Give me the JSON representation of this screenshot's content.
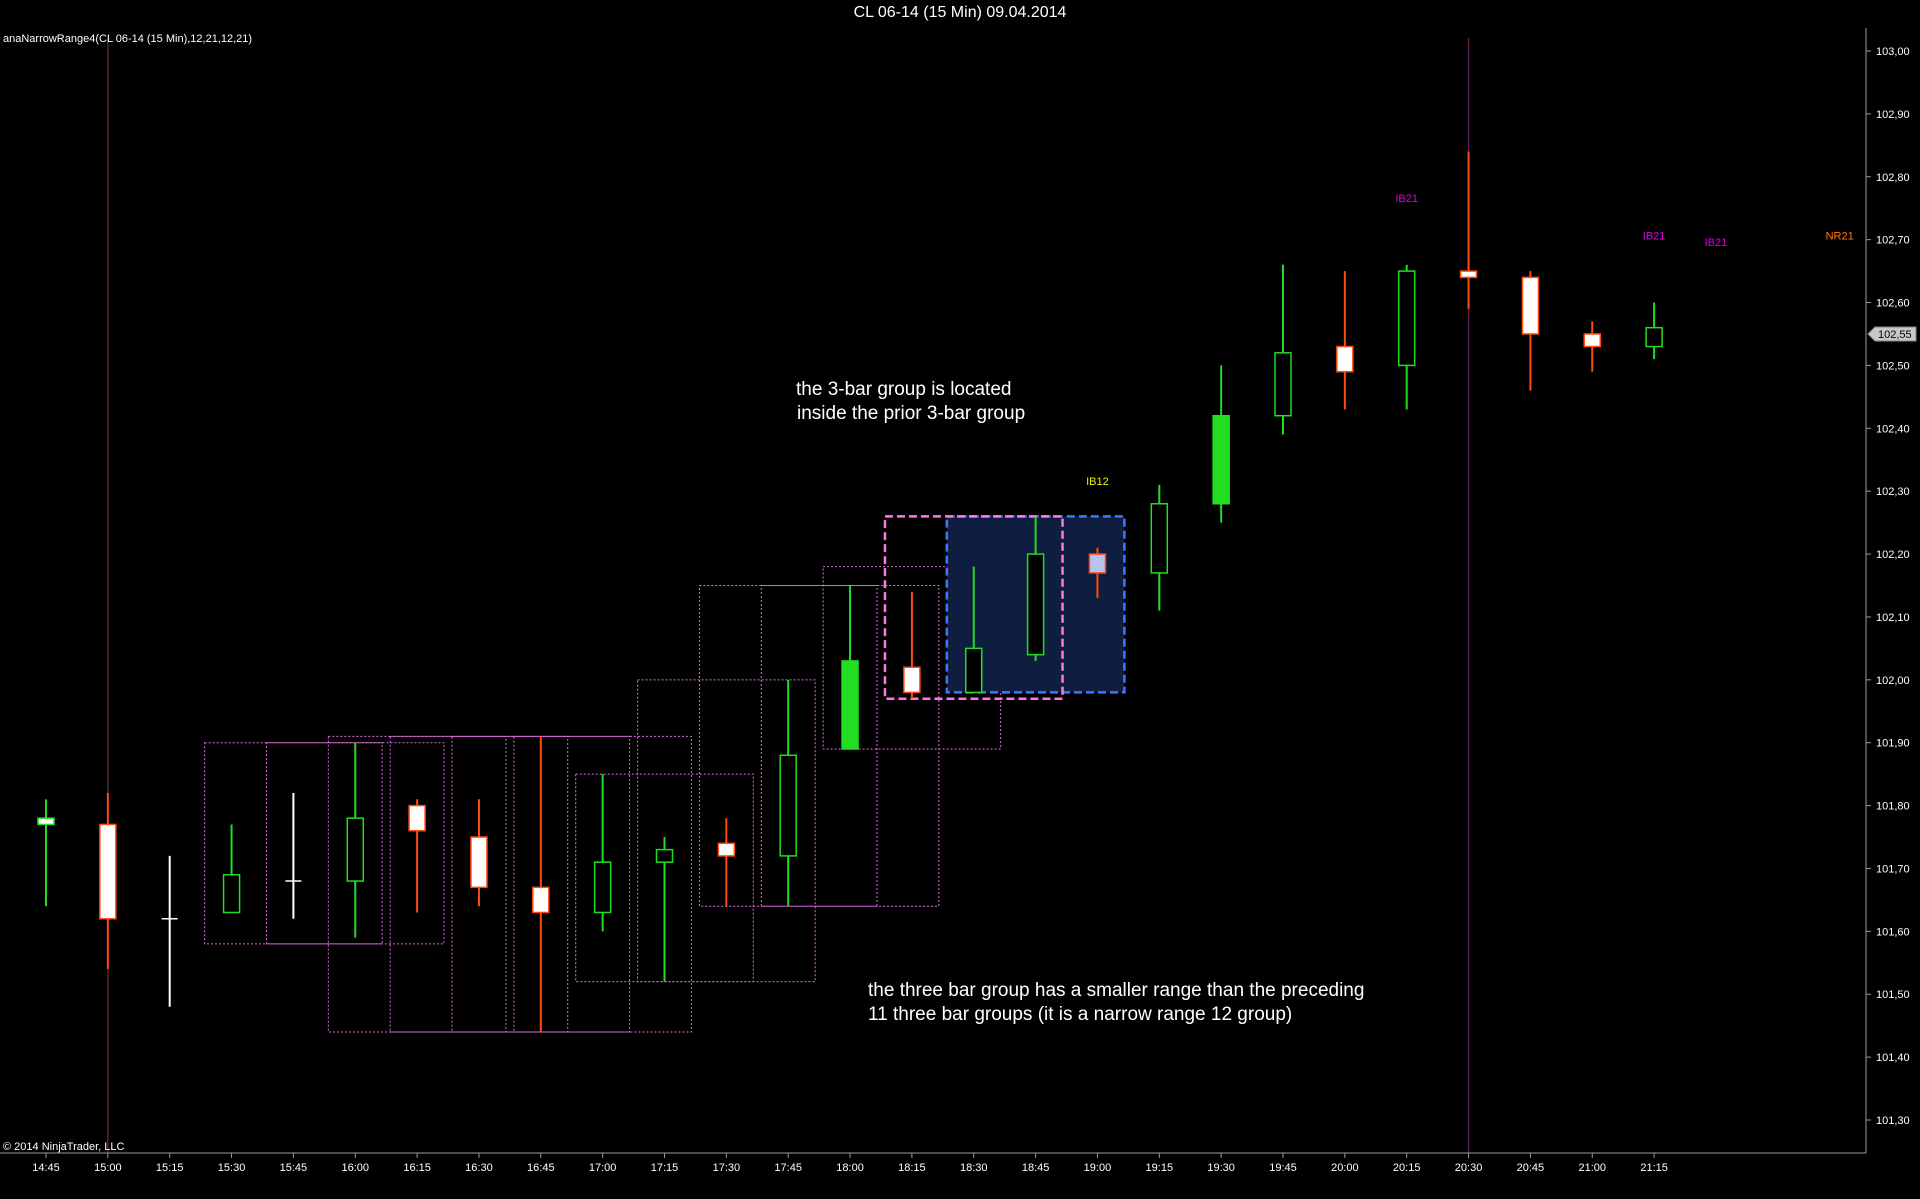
{
  "window": {
    "title": "CL 06-14 (15 Min)  09.04.2014"
  },
  "indicator_label": "anaNarrowRange4(CL 06-14 (15 Min),12,21,12,21)",
  "copyright": "© 2014 NinjaTrader, LLC",
  "colors": {
    "up": "#22dd22",
    "down": "#ff4a10",
    "doji": "#ffffff",
    "group_box": "#e070e0",
    "highlight_prior": "#ff7adf",
    "highlight_current": "#3a78ff",
    "highlight_fill": "#0f1d40",
    "ib21": "#e000e0",
    "ib12": "#f0f000",
    "nr21": "#ff7a10",
    "session_line": "#5a1f4a",
    "axis": "#9a9a9a"
  },
  "chart_data": {
    "type": "candlestick",
    "y_axis": {
      "min": 101.25,
      "max": 103.0,
      "tick_labels": [
        "103,00",
        "102,90",
        "102,80",
        "102,70",
        "102,60",
        "102,50",
        "102,40",
        "102,30",
        "102,20",
        "102,10",
        "102,00",
        "101,90",
        "101,80",
        "101,70",
        "101,60",
        "101,50",
        "101,40",
        "101,30"
      ],
      "ticks": [
        103.0,
        102.9,
        102.8,
        102.7,
        102.6,
        102.5,
        102.4,
        102.3,
        102.2,
        102.1,
        102.0,
        101.9,
        101.8,
        101.7,
        101.6,
        101.5,
        101.4,
        101.3
      ]
    },
    "x_axis": {
      "tick_labels": [
        "14:45",
        "15:00",
        "15:15",
        "15:30",
        "15:45",
        "16:00",
        "16:15",
        "16:30",
        "16:45",
        "17:00",
        "17:15",
        "17:30",
        "17:45",
        "18:00",
        "18:15",
        "18:30",
        "18:45",
        "19:00",
        "19:15",
        "19:30",
        "19:45",
        "20:00",
        "20:15",
        "20:30",
        "20:45",
        "21:00",
        "21:15"
      ]
    },
    "last_price_label": "102,55",
    "last_price": 102.55,
    "candles": [
      {
        "t": "14:45",
        "o": 101.77,
        "h": 101.81,
        "l": 101.64,
        "c": 101.78
      },
      {
        "t": "15:00",
        "o": 101.77,
        "h": 101.82,
        "l": 101.54,
        "c": 101.62
      },
      {
        "t": "15:15",
        "o": 101.62,
        "h": 101.72,
        "l": 101.48,
        "c": 101.62
      },
      {
        "t": "15:30",
        "o": 101.63,
        "h": 101.77,
        "l": 101.63,
        "c": 101.69
      },
      {
        "t": "15:45",
        "o": 101.68,
        "h": 101.82,
        "l": 101.62,
        "c": 101.68
      },
      {
        "t": "16:00",
        "o": 101.68,
        "h": 101.9,
        "l": 101.59,
        "c": 101.78
      },
      {
        "t": "16:15",
        "o": 101.8,
        "h": 101.81,
        "l": 101.63,
        "c": 101.76
      },
      {
        "t": "16:30",
        "o": 101.75,
        "h": 101.81,
        "l": 101.64,
        "c": 101.67
      },
      {
        "t": "16:45",
        "o": 101.67,
        "h": 101.91,
        "l": 101.44,
        "c": 101.63
      },
      {
        "t": "17:00",
        "o": 101.63,
        "h": 101.85,
        "l": 101.6,
        "c": 101.71
      },
      {
        "t": "17:15",
        "o": 101.71,
        "h": 101.75,
        "l": 101.52,
        "c": 101.73
      },
      {
        "t": "17:30",
        "o": 101.74,
        "h": 101.78,
        "l": 101.64,
        "c": 101.72
      },
      {
        "t": "17:45",
        "o": 101.72,
        "h": 102.0,
        "l": 101.64,
        "c": 101.88
      },
      {
        "t": "18:00",
        "o": 101.89,
        "h": 102.15,
        "l": 101.89,
        "c": 102.03
      },
      {
        "t": "18:15",
        "o": 102.02,
        "h": 102.14,
        "l": 101.97,
        "c": 101.98
      },
      {
        "t": "18:30",
        "o": 101.98,
        "h": 102.18,
        "l": 101.98,
        "c": 102.05
      },
      {
        "t": "18:45",
        "o": 102.04,
        "h": 102.26,
        "l": 102.03,
        "c": 102.2
      },
      {
        "t": "19:00",
        "o": 102.2,
        "h": 102.21,
        "l": 102.13,
        "c": 102.17
      },
      {
        "t": "19:15",
        "o": 102.17,
        "h": 102.31,
        "l": 102.11,
        "c": 102.28
      },
      {
        "t": "19:30",
        "o": 102.28,
        "h": 102.5,
        "l": 102.25,
        "c": 102.42
      },
      {
        "t": "19:45",
        "o": 102.42,
        "h": 102.66,
        "l": 102.39,
        "c": 102.52
      },
      {
        "t": "20:00",
        "o": 102.53,
        "h": 102.65,
        "l": 102.43,
        "c": 102.49
      },
      {
        "t": "20:15",
        "o": 102.5,
        "h": 102.66,
        "l": 102.43,
        "c": 102.65
      },
      {
        "t": "20:30",
        "o": 102.65,
        "h": 102.84,
        "l": 102.59,
        "c": 102.64
      },
      {
        "t": "20:45",
        "o": 102.64,
        "h": 102.65,
        "l": 102.46,
        "c": 102.55
      },
      {
        "t": "21:00",
        "o": 102.55,
        "h": 102.57,
        "l": 102.49,
        "c": 102.53
      },
      {
        "t": "21:15",
        "o": 102.53,
        "h": 102.6,
        "l": 102.51,
        "c": 102.56
      }
    ],
    "group_boxes": [
      {
        "from": "15:30",
        "to": "16:00",
        "high": 101.9,
        "low": 101.58
      },
      {
        "from": "15:45",
        "to": "16:15",
        "high": 101.9,
        "low": 101.58
      },
      {
        "from": "16:00",
        "to": "16:30",
        "high": 101.91,
        "low": 101.44
      },
      {
        "from": "16:15",
        "to": "16:45",
        "high": 101.91,
        "low": 101.44
      },
      {
        "from": "16:30",
        "to": "17:00",
        "high": 101.91,
        "low": 101.44
      },
      {
        "from": "16:45",
        "to": "17:15",
        "high": 101.91,
        "low": 101.44
      },
      {
        "from": "17:00",
        "to": "17:30",
        "high": 101.85,
        "low": 101.52
      },
      {
        "from": "17:15",
        "to": "17:45",
        "high": 102.0,
        "low": 101.52
      },
      {
        "from": "17:30",
        "to": "18:00",
        "high": 102.15,
        "low": 101.64
      },
      {
        "from": "17:45",
        "to": "18:15",
        "high": 102.15,
        "low": 101.64
      },
      {
        "from": "18:00",
        "to": "18:30",
        "high": 102.18,
        "low": 101.89
      }
    ],
    "highlight_prior": {
      "from": "18:15",
      "to": "18:45",
      "high": 102.26,
      "low": 101.97
    },
    "highlight_current": {
      "from": "18:30",
      "to": "19:00",
      "high": 102.26,
      "low": 101.98
    },
    "signals": [
      {
        "t": "19:00",
        "y": 102.31,
        "text": "IB12",
        "kind": "ib12"
      },
      {
        "t": "20:15",
        "y": 102.76,
        "text": "IB21",
        "kind": "ib21"
      },
      {
        "t": "21:15",
        "y": 102.7,
        "text": "IB21",
        "kind": "ib21"
      },
      {
        "t": "21:30",
        "y": 102.69,
        "text": "IB21",
        "kind": "ib21"
      },
      {
        "t": "22:00",
        "y": 102.7,
        "text": "NR21",
        "kind": "nr21"
      }
    ],
    "session_lines": [
      "15:00",
      "20:30"
    ],
    "annotations": [
      {
        "lines": [
          "the 3-bar group is located",
          "inside the prior 3-bar group"
        ]
      },
      {
        "lines": [
          "the three bar group has a smaller range than the preceding",
          "11 three bar groups (it is a narrow range 12 group)"
        ]
      }
    ]
  }
}
